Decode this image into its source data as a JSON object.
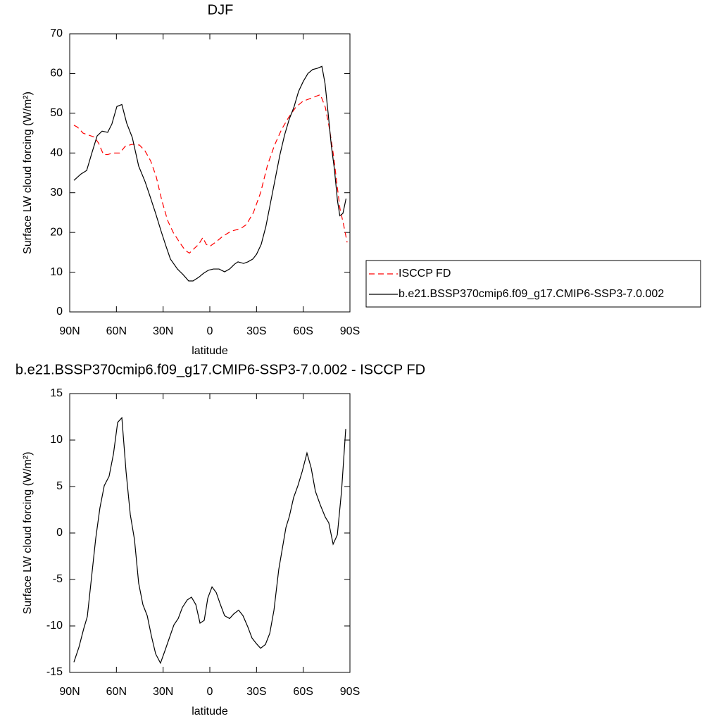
{
  "chart_data": [
    {
      "type": "line",
      "title": "DJF",
      "xlabel": "latitude",
      "ylabel": "Surface LW cloud forcing (W/m²)",
      "xlim": [
        90,
        -90
      ],
      "xticks": [
        {
          "value": 90,
          "label": "90N"
        },
        {
          "value": 60,
          "label": "60N"
        },
        {
          "value": 30,
          "label": "30N"
        },
        0,
        {
          "value": -30,
          "label": "30S"
        },
        {
          "value": -60,
          "label": "60S"
        },
        {
          "value": -90,
          "label": "90S"
        }
      ],
      "ylim": [
        0,
        70
      ],
      "yticks": [
        0,
        10,
        20,
        30,
        40,
        50,
        60,
        70
      ],
      "legend": "right",
      "series": [
        {
          "name": "ISCCP FD",
          "color": "#ff0000",
          "style": "dashed",
          "x": [
            87.3,
            85,
            81.4,
            77.8,
            74.2,
            71.5,
            68.3,
            65.6,
            62.4,
            57.9,
            54.3,
            49.8,
            45.2,
            41.6,
            38,
            34.4,
            30.8,
            27.1,
            23.5,
            19.4,
            15.8,
            13.1,
            9.9,
            7.2,
            4.5,
            2.3,
            0,
            -3.6,
            -8.2,
            -13.6,
            -19.9,
            -23.5,
            -28,
            -32.6,
            -37.1,
            -41.6,
            -46.2,
            -50.7,
            -55.2,
            -59.7,
            -66.5,
            -71,
            -74.2,
            -76.9,
            -79.6,
            -81.4,
            -83.6,
            -85.9,
            -88.2
          ],
          "values": [
            47,
            46.5,
            45,
            44.5,
            44,
            42.5,
            39.6,
            39.6,
            40,
            40,
            41.7,
            42.2,
            42,
            40.5,
            38,
            34,
            28,
            23,
            20,
            17.5,
            15.5,
            14.8,
            16,
            17,
            18.7,
            17,
            16.5,
            17.5,
            19,
            20.3,
            21,
            22,
            25,
            30,
            37,
            42,
            46,
            49,
            51.5,
            53,
            54,
            54.7,
            51.5,
            46,
            39,
            33,
            26,
            22,
            17.5
          ]
        },
        {
          "name": "b.e21.BSSP370cmip6.f09_g17.CMIP6-SSP3-7.0.002",
          "color": "#000000",
          "style": "solid",
          "x": [
            87.3,
            82.8,
            79.1,
            76,
            72.4,
            69.2,
            65.6,
            62.9,
            59.7,
            56.5,
            53.4,
            49.8,
            45.7,
            41.6,
            38.5,
            34.8,
            31.2,
            28.1,
            25.3,
            20.8,
            17.2,
            13.6,
            10.8,
            7.2,
            4.1,
            0.9,
            -2.3,
            -5.9,
            -9.5,
            -12.7,
            -15.8,
            -18.1,
            -21.7,
            -24.4,
            -27.6,
            -30,
            -33,
            -36,
            -39,
            -42,
            -45,
            -48,
            -51,
            -54,
            -57,
            -60,
            -63,
            -66,
            -69,
            -72,
            -74,
            -76,
            -78,
            -80,
            -82,
            -83.5,
            -85.5,
            -87.5
          ],
          "values": [
            33.1,
            34.7,
            35.6,
            39.7,
            44.3,
            45.5,
            45.2,
            47.3,
            51.7,
            52.2,
            47.5,
            43.9,
            36.7,
            32.8,
            29.2,
            24.8,
            20.2,
            16.5,
            13.3,
            10.8,
            9.4,
            7.8,
            7.8,
            8.7,
            9.7,
            10.5,
            10.8,
            10.8,
            10.1,
            10.8,
            12,
            12.6,
            12.2,
            12.6,
            13.3,
            14.5,
            17,
            21.5,
            27.5,
            33.5,
            39.5,
            44.5,
            48.5,
            51.5,
            55.5,
            58,
            60,
            61,
            61.3,
            61.8,
            57.5,
            50,
            42,
            36,
            28,
            24.2,
            24.8,
            28.5
          ]
        }
      ]
    },
    {
      "type": "line",
      "title": "b.e21.BSSP370cmip6.f09_g17.CMIP6-SSP3-7.0.002 - ISCCP FD",
      "xlabel": "latitude",
      "ylabel": "Surface LW cloud forcing (W/m²)",
      "xlim": [
        90,
        -90
      ],
      "xticks": [
        {
          "value": 90,
          "label": "90N"
        },
        {
          "value": 60,
          "label": "60N"
        },
        {
          "value": 30,
          "label": "30N"
        },
        0,
        {
          "value": -30,
          "label": "30S"
        },
        {
          "value": -60,
          "label": "60S"
        },
        {
          "value": -90,
          "label": "90S"
        }
      ],
      "ylim": [
        -15,
        15
      ],
      "yticks": [
        -15,
        -10,
        -5,
        0,
        5,
        10,
        15
      ],
      "series": [
        {
          "color": "#000000",
          "style": "solid",
          "x": [
            87.3,
            84.1,
            81,
            78.7,
            76,
            73.3,
            70.6,
            67.8,
            64.7,
            61.9,
            59.2,
            56.5,
            53.8,
            51.1,
            48.4,
            45.7,
            43,
            40.2,
            37.5,
            34.8,
            31.7,
            28.9,
            26.2,
            23.1,
            20.3,
            17.6,
            14.5,
            11.8,
            9,
            6.3,
            3.6,
            1.3,
            -1.4,
            -4.1,
            -6.8,
            -9.5,
            -12.7,
            -15.4,
            -18.5,
            -21.3,
            -24.4,
            -27.1,
            -29.9,
            -32.6,
            -35.7,
            -38.5,
            -41.2,
            -44.3,
            -48.9,
            -51.1,
            -53.8,
            -56.6,
            -59.3,
            -62.4,
            -65.1,
            -67.8,
            -71,
            -74.2,
            -76.4,
            -79.2,
            -81.9,
            -84.6,
            -87.3
          ],
          "values": [
            -13.9,
            -12.3,
            -10.3,
            -9,
            -4.8,
            -0.6,
            2.7,
            5.1,
            6.1,
            8.5,
            11.9,
            12.4,
            6.6,
            2,
            -0.7,
            -5.4,
            -7.7,
            -8.9,
            -11.1,
            -13,
            -14,
            -12.7,
            -11.4,
            -9.9,
            -9.2,
            -8,
            -7.2,
            -6.9,
            -7.7,
            -9.7,
            -9.4,
            -7,
            -5.8,
            -6.4,
            -7.7,
            -8.9,
            -9.2,
            -8.7,
            -8.3,
            -8.9,
            -10.1,
            -11.3,
            -11.9,
            -12.4,
            -12,
            -10.8,
            -8.3,
            -3.9,
            0.6,
            1.8,
            3.8,
            5.1,
            6.6,
            8.6,
            7,
            4.5,
            3,
            1.7,
            1.1,
            -1.2,
            -0.2,
            4.5,
            11.2
          ]
        }
      ]
    }
  ]
}
